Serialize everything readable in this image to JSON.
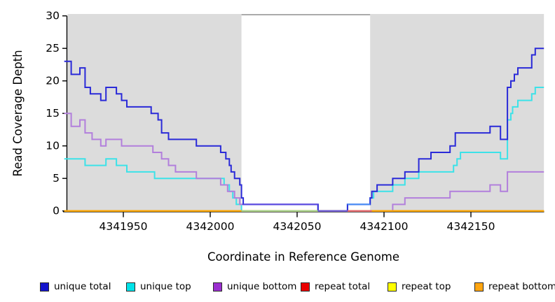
{
  "y_axis": {
    "label": "Read Coverage Depth",
    "ticks": [
      0,
      5,
      10,
      15,
      20,
      25,
      30
    ],
    "min": 0,
    "max": 30
  },
  "x_axis": {
    "label": "Coordinate in Reference Genome",
    "ticks": [
      4341950,
      4342000,
      4342050,
      4342100,
      4342150
    ],
    "min": 4341916,
    "max": 4342192
  },
  "chart_data": {
    "type": "line",
    "step": true,
    "title": "",
    "xlabel": "Coordinate in Reference Genome",
    "ylabel": "Read Coverage Depth",
    "xlim": [
      4341916,
      4342192
    ],
    "ylim": [
      0,
      30
    ],
    "grid": false,
    "background_shading": {
      "color": "#DCDCDC",
      "regions": [
        {
          "x1": 4341918,
          "x2": 4342018
        },
        {
          "x1": 4342092,
          "x2": 4342192
        }
      ],
      "gap_top_line_color": "#ABABAB"
    },
    "series": [
      {
        "name": "unique total",
        "color": "#2A2AD8",
        "x_end": 4342192,
        "steps": [
          [
            4341916,
            23
          ],
          [
            4341920,
            21
          ],
          [
            4341925,
            22
          ],
          [
            4341928,
            19
          ],
          [
            4341931,
            18
          ],
          [
            4341937,
            17
          ],
          [
            4341940,
            19
          ],
          [
            4341946,
            18
          ],
          [
            4341949,
            17
          ],
          [
            4341952,
            16
          ],
          [
            4341966,
            15
          ],
          [
            4341970,
            14
          ],
          [
            4341972,
            12
          ],
          [
            4341976,
            11
          ],
          [
            4341992,
            10
          ],
          [
            4342006,
            9
          ],
          [
            4342009,
            8
          ],
          [
            4342011,
            7
          ],
          [
            4342012,
            6
          ],
          [
            4342014,
            5
          ],
          [
            4342017,
            4
          ],
          [
            4342018,
            2
          ],
          [
            4342019,
            1
          ],
          [
            4342062,
            0
          ],
          [
            4342079,
            1
          ],
          [
            4342092,
            2
          ],
          [
            4342093,
            3
          ],
          [
            4342096,
            4
          ],
          [
            4342105,
            5
          ],
          [
            4342112,
            6
          ],
          [
            4342120,
            8
          ],
          [
            4342127,
            9
          ],
          [
            4342138,
            10
          ],
          [
            4342141,
            12
          ],
          [
            4342161,
            13
          ],
          [
            4342167,
            11
          ],
          [
            4342171,
            19
          ],
          [
            4342173,
            20
          ],
          [
            4342175,
            21
          ],
          [
            4342177,
            22
          ],
          [
            4342185,
            24
          ],
          [
            4342187,
            25
          ]
        ]
      },
      {
        "name": "unique top",
        "color": "#3CE2E8",
        "x_end": 4342192,
        "steps": [
          [
            4341916,
            8
          ],
          [
            4341928,
            7
          ],
          [
            4341940,
            8
          ],
          [
            4341946,
            7
          ],
          [
            4341952,
            6
          ],
          [
            4341968,
            5
          ],
          [
            4342008,
            4
          ],
          [
            4342011,
            3
          ],
          [
            4342013,
            2
          ],
          [
            4342015,
            1
          ],
          [
            4342018,
            0
          ],
          [
            4342079,
            1
          ],
          [
            4342092,
            2
          ],
          [
            4342094,
            3
          ],
          [
            4342105,
            4
          ],
          [
            4342112,
            5
          ],
          [
            4342120,
            6
          ],
          [
            4342140,
            7
          ],
          [
            4342142,
            8
          ],
          [
            4342144,
            9
          ],
          [
            4342167,
            8
          ],
          [
            4342171,
            14
          ],
          [
            4342173,
            15
          ],
          [
            4342174,
            16
          ],
          [
            4342177,
            17
          ],
          [
            4342185,
            18
          ],
          [
            4342187,
            19
          ]
        ]
      },
      {
        "name": "unique bottom",
        "color": "#B27FDC",
        "x_end": 4342192,
        "steps": [
          [
            4341916,
            15
          ],
          [
            4341920,
            13
          ],
          [
            4341925,
            14
          ],
          [
            4341928,
            12
          ],
          [
            4341932,
            11
          ],
          [
            4341937,
            10
          ],
          [
            4341940,
            11
          ],
          [
            4341949,
            10
          ],
          [
            4341967,
            9
          ],
          [
            4341972,
            8
          ],
          [
            4341976,
            7
          ],
          [
            4341980,
            6
          ],
          [
            4341992,
            5
          ],
          [
            4342006,
            4
          ],
          [
            4342010,
            3
          ],
          [
            4342014,
            2
          ],
          [
            4342017,
            1
          ],
          [
            4342062,
            0
          ],
          [
            4342105,
            1
          ],
          [
            4342112,
            2
          ],
          [
            4342138,
            3
          ],
          [
            4342161,
            4
          ],
          [
            4342167,
            3
          ],
          [
            4342171,
            6
          ]
        ]
      },
      {
        "name": "repeat total",
        "color": "#E01010",
        "x_end": 4342192,
        "steps": [
          [
            4341916,
            0
          ]
        ]
      },
      {
        "name": "repeat top",
        "color": "#F5F500",
        "x_end": 4342192,
        "steps": [
          [
            4341916,
            0
          ]
        ]
      },
      {
        "name": "repeat bottom",
        "color": "#FFA500",
        "x_end": 4342192,
        "steps": [
          [
            4341916,
            0
          ]
        ]
      }
    ],
    "overlap_segments": [
      {
        "x1": 4342018,
        "x2": 4342062,
        "depth": 0,
        "color": "#9CD69C"
      },
      {
        "x1": 4342019,
        "x2": 4342062,
        "depth": 1,
        "color": "#5B4BE0"
      },
      {
        "x1": 4342062,
        "x2": 4342079,
        "depth": 0,
        "color": "#6A5AE0"
      },
      {
        "x1": 4342079,
        "x2": 4342093,
        "depth": 0,
        "color": "#E06080"
      },
      {
        "x1": 4342079,
        "x2": 4342092,
        "depth": 1,
        "color": "#4A8CF5"
      }
    ]
  },
  "legend": {
    "items": [
      {
        "label": "unique total",
        "color": "#1414CC"
      },
      {
        "label": "unique top",
        "color": "#00E2E8"
      },
      {
        "label": "unique bottom",
        "color": "#9B2FD0"
      },
      {
        "label": "repeat total",
        "color": "#EA0000"
      },
      {
        "label": "repeat top",
        "color": "#FFFF00"
      },
      {
        "label": "repeat bottom",
        "color": "#FFA510"
      }
    ]
  }
}
